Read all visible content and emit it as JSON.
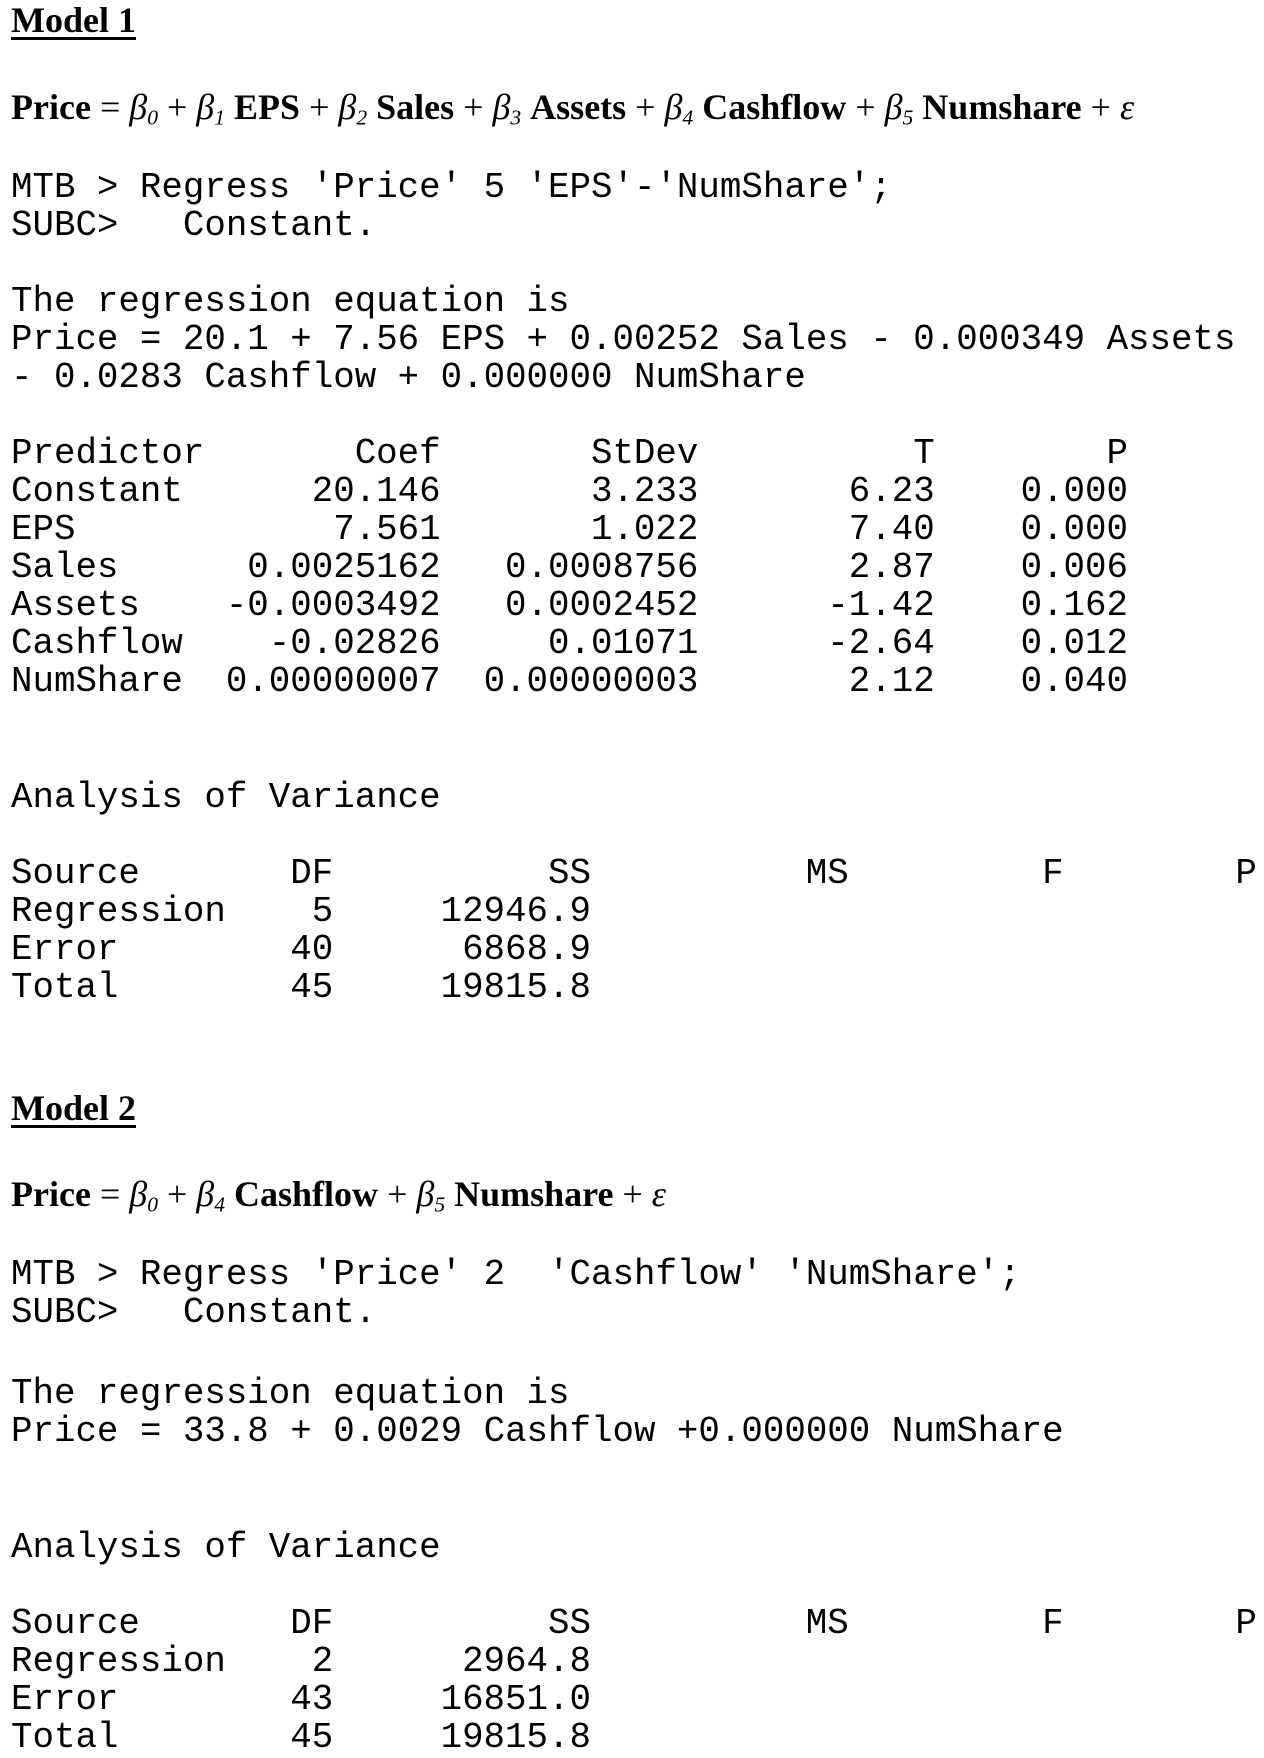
{
  "model1": {
    "title": "Model 1",
    "equation": {
      "lhs": "Price",
      "terms": [
        {
          "beta": "β",
          "sub": "0",
          "var": ""
        },
        {
          "beta": "β",
          "sub": "1",
          "var": "EPS"
        },
        {
          "beta": "β",
          "sub": "2",
          "var": "Sales"
        },
        {
          "beta": "β",
          "sub": "3",
          "var": "Assets"
        },
        {
          "beta": "β",
          "sub": "4",
          "var": "Cashflow"
        },
        {
          "beta": "β",
          "sub": "5",
          "var": "Numshare"
        }
      ],
      "error": "ε"
    },
    "command": [
      "MTB > Regress 'Price' 5 'EPS'-'NumShare';",
      "SUBC>   Constant."
    ],
    "regression_text": [
      "The regression equation is",
      "Price = 20.1 + 7.56 EPS + 0.00252 Sales - 0.000349 Assets",
      "- 0.0283 Cashflow + 0.000000 NumShare"
    ],
    "predictor_table": {
      "headers": [
        "Predictor",
        "Coef",
        "StDev",
        "T",
        "P"
      ],
      "rows": [
        [
          "Constant",
          "20.146",
          "3.233",
          "6.23",
          "0.000"
        ],
        [
          "EPS",
          "7.561",
          "1.022",
          "7.40",
          "0.000"
        ],
        [
          "Sales",
          "0.0025162",
          "0.0008756",
          "2.87",
          "0.006"
        ],
        [
          "Assets",
          "-0.0003492",
          "0.0002452",
          "-1.42",
          "0.162"
        ],
        [
          "Cashflow",
          "-0.02826",
          "0.01071",
          "-2.64",
          "0.012"
        ],
        [
          "NumShare",
          "0.00000007",
          "0.00000003",
          "2.12",
          "0.040"
        ]
      ]
    },
    "anova_title": "Analysis of Variance",
    "anova": {
      "headers": [
        "Source",
        "DF",
        "SS",
        "MS",
        "F",
        "P"
      ],
      "rows": [
        [
          "Regression",
          "5",
          "12946.9"
        ],
        [
          "Error",
          "40",
          "6868.9"
        ],
        [
          "Total",
          "45",
          "19815.8"
        ]
      ]
    }
  },
  "model2": {
    "title": "Model 2",
    "equation": {
      "lhs": "Price",
      "terms": [
        {
          "beta": "β",
          "sub": "0",
          "var": ""
        },
        {
          "beta": "β",
          "sub": "4",
          "var": "Cashflow"
        },
        {
          "beta": "β",
          "sub": "5",
          "var": "Numshare"
        }
      ],
      "error": "ε"
    },
    "command": [
      "MTB > Regress 'Price' 2  'Cashflow' 'NumShare';",
      "SUBC>   Constant."
    ],
    "regression_text": [
      "The regression equation is",
      "Price = 33.8 + 0.0029 Cashflow +0.000000 NumShare"
    ],
    "anova_title": "Analysis of Variance",
    "anova": {
      "headers": [
        "Source",
        "DF",
        "SS",
        "MS",
        "F",
        "P"
      ],
      "rows": [
        [
          "Regression",
          "2",
          "2964.8"
        ],
        [
          "Error",
          "43",
          "16851.0"
        ],
        [
          "Total",
          "45",
          "19815.8"
        ]
      ]
    }
  }
}
